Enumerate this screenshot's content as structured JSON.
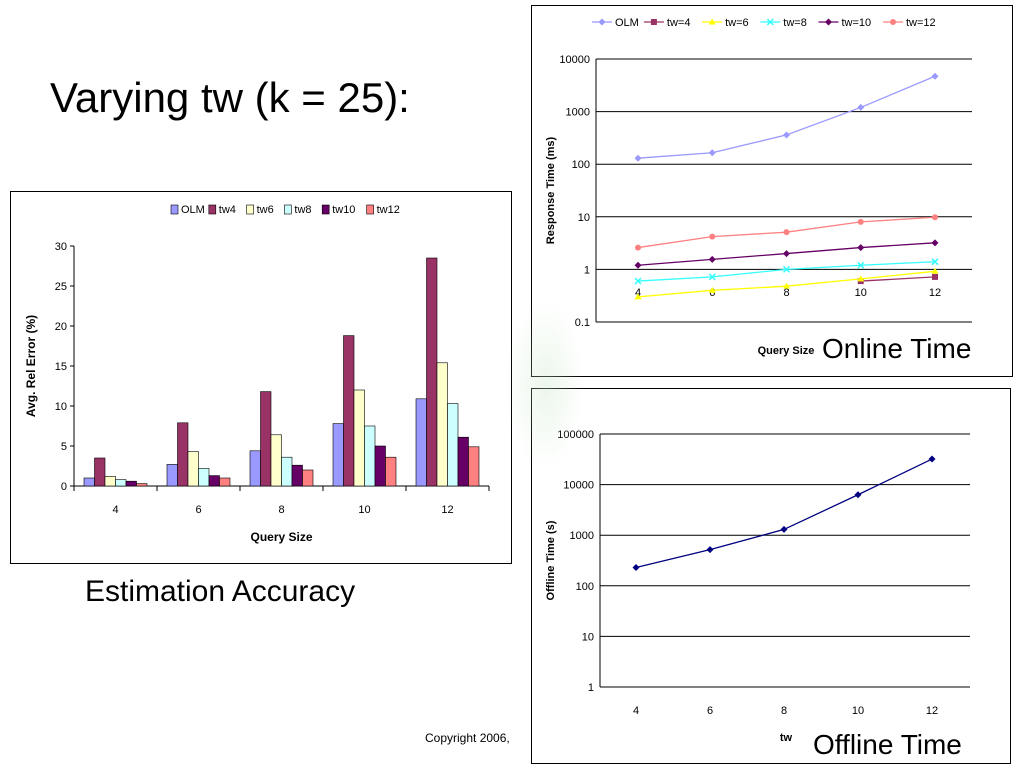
{
  "slide": {
    "title": "Varying tw (k = 25):",
    "copyright": "Copyright 2006,"
  },
  "captions": {
    "accuracy": "Estimation Accuracy",
    "online": "Online Time",
    "offline": "Offline Time"
  },
  "chart_data": [
    {
      "type": "bar",
      "title": "",
      "xlabel": "Query Size",
      "ylabel": "Avg. Rel Error (%)",
      "categories": [
        "4",
        "6",
        "8",
        "10",
        "12"
      ],
      "ylim": [
        0,
        30
      ],
      "yticks": [
        0,
        5,
        10,
        15,
        20,
        25,
        30
      ],
      "grid": false,
      "legend": "top",
      "series": [
        {
          "name": "OLM",
          "color": "#9999ff",
          "values": [
            1.0,
            2.7,
            4.4,
            7.8,
            10.9
          ]
        },
        {
          "name": "tw4",
          "color": "#993366",
          "values": [
            3.5,
            7.9,
            11.8,
            18.8,
            28.5
          ]
        },
        {
          "name": "tw6",
          "color": "#ffffcc",
          "values": [
            1.2,
            4.3,
            6.4,
            12.0,
            15.4
          ]
        },
        {
          "name": "tw8",
          "color": "#ccffff",
          "values": [
            0.8,
            2.2,
            3.6,
            7.5,
            10.3
          ]
        },
        {
          "name": "tw10",
          "color": "#660066",
          "values": [
            0.6,
            1.3,
            2.6,
            5.0,
            6.1
          ]
        },
        {
          "name": "tw12",
          "color": "#ff8080",
          "values": [
            0.3,
            1.0,
            2.0,
            3.6,
            4.9
          ]
        }
      ]
    },
    {
      "type": "line",
      "title": "",
      "xlabel": "Query Size",
      "ylabel": "Response Time (ms)",
      "x": [
        4,
        6,
        8,
        10,
        12
      ],
      "xticks": [
        "4",
        "6",
        "8",
        "10",
        "12"
      ],
      "yscale": "log",
      "ylim": [
        0.1,
        10000
      ],
      "yticks": [
        "0.1",
        "1",
        "10",
        "100",
        "1000",
        "10000"
      ],
      "grid": true,
      "legend": "top",
      "series": [
        {
          "name": "OLM",
          "color": "#9999ff",
          "marker": "diamond",
          "values": [
            130,
            165,
            360,
            1200,
            4700
          ]
        },
        {
          "name": "tw=4",
          "color": "#993366",
          "marker": "square",
          "values": [
            null,
            null,
            null,
            0.6,
            0.72
          ]
        },
        {
          "name": "tw=6",
          "color": "#ffff00",
          "marker": "triangle",
          "values": [
            0.3,
            0.4,
            0.48,
            0.66,
            0.92
          ]
        },
        {
          "name": "tw=8",
          "color": "#33ffff",
          "marker": "x",
          "values": [
            0.6,
            0.72,
            1.0,
            1.2,
            1.4
          ]
        },
        {
          "name": "tw=10",
          "color": "#660066",
          "marker": "diamond",
          "values": [
            1.2,
            1.55,
            2.0,
            2.6,
            3.2
          ]
        },
        {
          "name": "tw=12",
          "color": "#ff8080",
          "marker": "circle",
          "values": [
            2.6,
            4.2,
            5.1,
            8.0,
            9.8
          ]
        }
      ]
    },
    {
      "type": "line",
      "title": "",
      "xlabel": "tw",
      "ylabel": "Offline Time (s)",
      "x": [
        4,
        6,
        8,
        10,
        12
      ],
      "xticks": [
        "4",
        "6",
        "8",
        "10",
        "12"
      ],
      "yscale": "log",
      "ylim": [
        1,
        100000
      ],
      "yticks": [
        "1",
        "10",
        "100",
        "1000",
        "10000",
        "100000"
      ],
      "grid": true,
      "legend": "none",
      "series": [
        {
          "color": "#000080",
          "marker": "diamond",
          "values": [
            230,
            520,
            1300,
            6300,
            32000
          ]
        }
      ]
    }
  ]
}
